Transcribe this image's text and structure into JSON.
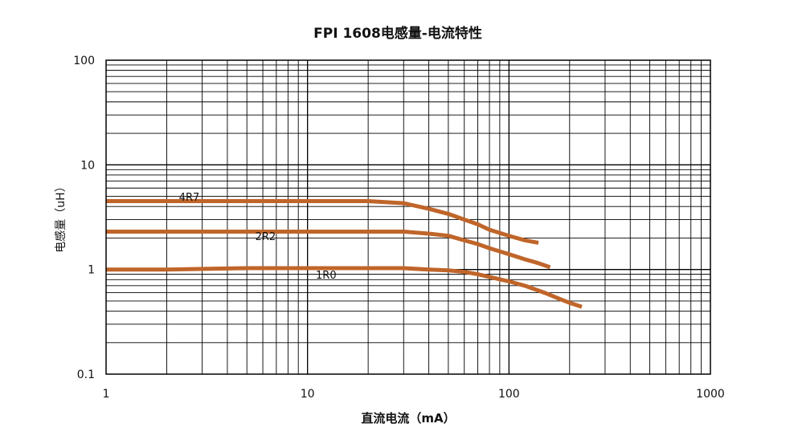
{
  "chart_data": {
    "type": "line",
    "title": "FPI 1608电感量-电流特性",
    "xlabel": "直流电流（mA）",
    "ylabel": "电感量（uH）",
    "x_scale": "log",
    "y_scale": "log",
    "xlim": [
      1,
      1000
    ],
    "ylim": [
      0.1,
      100
    ],
    "x_ticks": [
      "1",
      "10",
      "100",
      "1000"
    ],
    "y_ticks": [
      "0.1",
      "1",
      "10",
      "100"
    ],
    "grid": true,
    "legend": "none",
    "series": [
      {
        "name": "4R7",
        "color": "#c0652a",
        "x": [
          1,
          2,
          5,
          10,
          20,
          30,
          40,
          50,
          60,
          70,
          80,
          100,
          120,
          140
        ],
        "y": [
          4.5,
          4.5,
          4.5,
          4.5,
          4.5,
          4.3,
          3.8,
          3.4,
          3.0,
          2.7,
          2.4,
          2.1,
          1.9,
          1.8
        ]
      },
      {
        "name": "2R2",
        "color": "#c0652a",
        "x": [
          1,
          2,
          5,
          10,
          20,
          30,
          40,
          50,
          60,
          70,
          80,
          100,
          120,
          140,
          160
        ],
        "y": [
          2.3,
          2.3,
          2.3,
          2.3,
          2.3,
          2.3,
          2.2,
          2.1,
          1.9,
          1.75,
          1.6,
          1.4,
          1.25,
          1.15,
          1.05
        ]
      },
      {
        "name": "1R0",
        "color": "#c0652a",
        "x": [
          1,
          2,
          5,
          10,
          20,
          30,
          40,
          50,
          60,
          70,
          80,
          100,
          120,
          150,
          180,
          200,
          230
        ],
        "y": [
          1.0,
          1.0,
          1.03,
          1.03,
          1.03,
          1.03,
          1.0,
          0.98,
          0.95,
          0.9,
          0.85,
          0.77,
          0.7,
          0.6,
          0.52,
          0.48,
          0.44
        ]
      }
    ]
  }
}
